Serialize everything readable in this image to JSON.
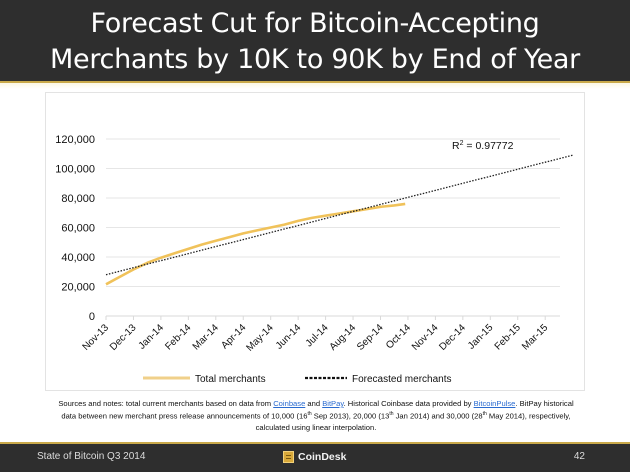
{
  "slide": {
    "title_line1": "Forecast Cut for Bitcoin-Accepting",
    "title_line2": "Merchants by 10K to 90K by End of Year",
    "footer_left": "State of Bitcoin Q3 2014",
    "brand": "CoinDesk",
    "page_number": "42"
  },
  "notes": {
    "p1": "Sources and notes: total current merchants based on data from ",
    "link_coinbase": "Coinbase",
    "and": " and ",
    "link_bitpay": "BitPay",
    "p2": ". Historical Coinbase data provided by ",
    "link_bitcoinpulse": "BitcoinPulse",
    "p3": ". BitPay historical data between new merchant press release announcements of 10,000 (16",
    "th1": "th",
    "p4": " Sep 2013), 20,000 (13",
    "th2": "th",
    "p5": " Jan 2014) and 30,000 (28",
    "th3": "th",
    "p6": " May 2014), respectively, calculated using linear interpolation.",
    "link_color": "#2a6bd0"
  },
  "chart_data": {
    "type": "line",
    "title": "Forecast Cut for Bitcoin-Accepting Merchants by 10K to 90K by End of Year",
    "xlabel": "",
    "ylabel": "",
    "categories": [
      "Nov-13",
      "Dec-13",
      "Jan-14",
      "Feb-14",
      "Mar-14",
      "Apr-14",
      "May-14",
      "Jun-14",
      "Jul-14",
      "Aug-14",
      "Sep-14",
      "Oct-14",
      "Nov-14",
      "Dec-14",
      "Jan-15",
      "Feb-15",
      "Mar-15"
    ],
    "yticks": [
      "0",
      "20,000",
      "40,000",
      "60,000",
      "80,000",
      "100,000",
      "120,000"
    ],
    "ylim": [
      0,
      120000
    ],
    "grid": true,
    "legend_position": "bottom",
    "annotation": "R² = 0.97772",
    "annotation_base": "R",
    "annotation_sup": "2",
    "annotation_rest": " = 0.97772",
    "series": [
      {
        "name": "Total merchants",
        "style": "solid",
        "color": "#f0c25a",
        "x": [
          0,
          0.5,
          1,
          1.5,
          2,
          2.5,
          3,
          3.5,
          4,
          4.5,
          5,
          5.5,
          6,
          6.5,
          7,
          7.5,
          8,
          8.5,
          9,
          9.5,
          10,
          10.5,
          10.9
        ],
        "values": [
          21500,
          26500,
          31500,
          36000,
          39500,
          42500,
          45500,
          48500,
          51000,
          53500,
          56000,
          58000,
          60000,
          62000,
          64500,
          66500,
          68000,
          69500,
          71000,
          72500,
          74000,
          75000,
          76000
        ]
      },
      {
        "name": "Forecasted merchants",
        "style": "dotted",
        "color": "#222222",
        "x": [
          0,
          17
        ],
        "values": [
          28000,
          109000
        ]
      }
    ]
  }
}
